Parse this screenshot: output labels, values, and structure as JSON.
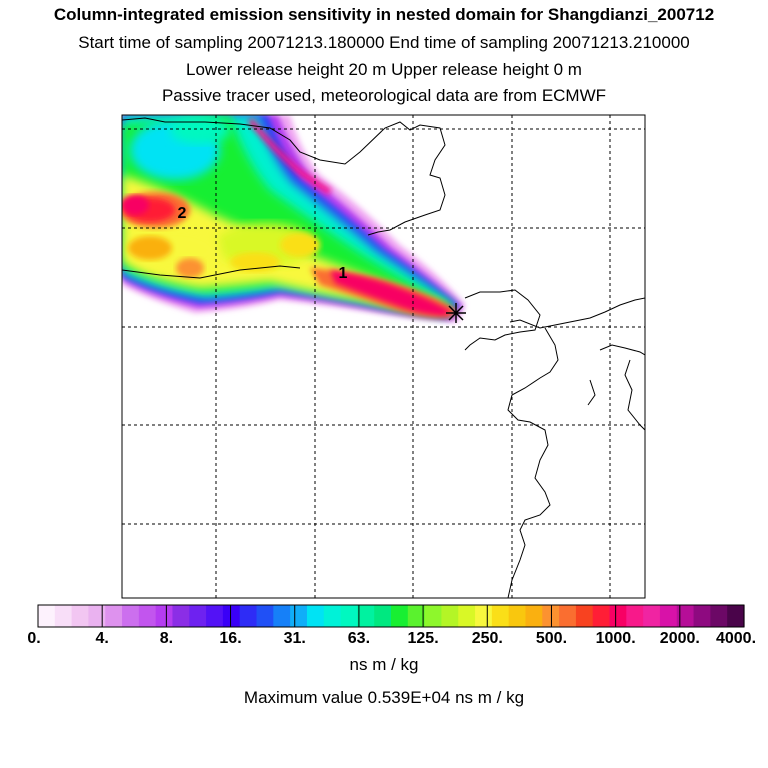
{
  "header": {
    "title": "Column-integrated emission sensitivity in nested domain for Shangdianzi_200712",
    "sampling": "Start time of sampling 20071213.180000     End time of sampling 20071213.210000",
    "release": "Lower release height   20 m          Upper release height    0 m",
    "tracer": "Passive tracer used, meteorological data are from ECMWF"
  },
  "map": {
    "labels": [
      {
        "text": "2",
        "name": "source-label-2"
      },
      {
        "text": "1",
        "name": "source-label-1"
      }
    ],
    "receptor_marker": "star-icon"
  },
  "colorbar": {
    "ticks": [
      "0.",
      "4.",
      "8.",
      "16.",
      "31.",
      "63.",
      "125.",
      "250.",
      "500.",
      "1000.",
      "2000.",
      "4000."
    ],
    "colors": [
      "#fdf2fd",
      "#f8def8",
      "#f2c6f2",
      "#eab2f0",
      "#de92ee",
      "#cc6fee",
      "#c255ee",
      "#b53cf0",
      "#8b2ee6",
      "#6e22f0",
      "#5312f6",
      "#3a00f7",
      "#2e2cf6",
      "#2050f6",
      "#1680f8",
      "#10aef8",
      "#00e3f4",
      "#00f2d8",
      "#00f8c0",
      "#00f2a0",
      "#00e880",
      "#18ef32",
      "#5af22e",
      "#8ef72c",
      "#b4f526",
      "#d9f826",
      "#f8f83e",
      "#fadf18",
      "#f9c70e",
      "#fab010",
      "#fc9230",
      "#fa6e30",
      "#f84220",
      "#ff1e36",
      "#f80064",
      "#f8198a",
      "#f024a2",
      "#d812a8",
      "#b60e98",
      "#8e0a80",
      "#6c0866",
      "#4a044a"
    ],
    "units": "ns m / kg",
    "max_label": "Maximum value  0.539E+04 ns m / kg"
  }
}
